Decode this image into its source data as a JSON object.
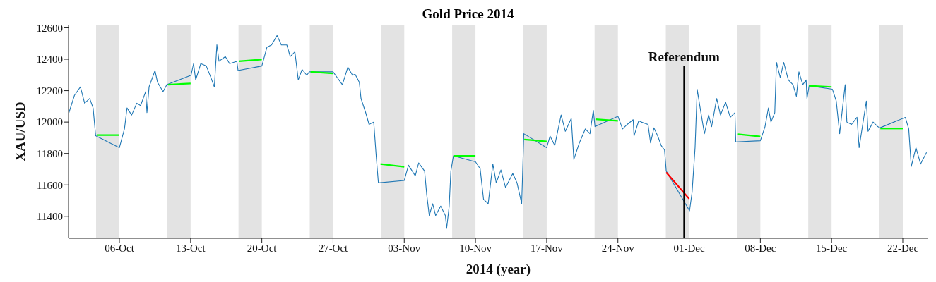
{
  "chart_data": {
    "type": "line",
    "title": "Gold Price 2014",
    "xlabel": "2014 (year)",
    "ylabel": "XAU/USD",
    "xlim": [
      "2014-10-01T00:00",
      "2014-12-24T12:00"
    ],
    "xticks": [
      {
        "value": "2014-10-06",
        "label": "06-Oct"
      },
      {
        "value": "2014-10-13",
        "label": "13-Oct"
      },
      {
        "value": "2014-10-20",
        "label": "20-Oct"
      },
      {
        "value": "2014-10-27",
        "label": "27-Oct"
      },
      {
        "value": "2014-11-03",
        "label": "03-Nov"
      },
      {
        "value": "2014-11-10",
        "label": "10-Nov"
      },
      {
        "value": "2014-11-17",
        "label": "17-Nov"
      },
      {
        "value": "2014-11-24",
        "label": "24-Nov"
      },
      {
        "value": "2014-12-01",
        "label": "01-Dec"
      },
      {
        "value": "2014-12-08",
        "label": "08-Dec"
      },
      {
        "value": "2014-12-15",
        "label": "15-Dec"
      },
      {
        "value": "2014-12-22",
        "label": "22-Dec"
      }
    ],
    "ylim": [
      11260,
      12620
    ],
    "yticks": [
      11400,
      11600,
      11800,
      12000,
      12200,
      12400,
      12600
    ],
    "series": [
      {
        "color": "#1f77b4",
        "x": [
          "2014-10-01T01:00",
          "2014-10-01T14:00",
          "2014-10-02T04:00",
          "2014-10-02T14:00",
          "2014-10-03T02:00",
          "2014-10-03T10:00",
          "2014-10-03T16:00",
          "2014-10-06T00:00",
          "2014-10-06T12:00",
          "2014-10-06T18:00",
          "2014-10-07T05:00",
          "2014-10-07T17:00",
          "2014-10-08T02:00",
          "2014-10-08T14:00",
          "2014-10-08T17:00",
          "2014-10-08T22:00",
          "2014-10-09T12:00",
          "2014-10-09T18:00",
          "2014-10-10T07:00",
          "2014-10-10T16:00",
          "2014-10-13T01:00",
          "2014-10-13T07:00",
          "2014-10-13T12:00",
          "2014-10-14T00:00",
          "2014-10-14T13:00",
          "2014-10-15T00:00",
          "2014-10-15T08:00",
          "2014-10-15T14:00",
          "2014-10-15T19:00",
          "2014-10-16T10:00",
          "2014-10-16T20:00",
          "2014-10-17T13:00",
          "2014-10-17T16:00",
          "2014-10-20T00:00",
          "2014-10-20T12:00",
          "2014-10-20T23:00",
          "2014-10-21T12:00",
          "2014-10-21T22:00",
          "2014-10-22T11:00",
          "2014-10-22T19:00",
          "2014-10-23T06:00",
          "2014-10-23T14:00",
          "2014-10-23T23:00",
          "2014-10-24T10:00",
          "2014-10-24T16:00",
          "2014-10-27T00:00",
          "2014-10-27T08:00",
          "2014-10-27T22:00",
          "2014-10-28T11:00",
          "2014-10-28T22:00",
          "2014-10-29T04:00",
          "2014-10-29T14:00",
          "2014-10-29T18:00",
          "2014-10-30T05:00",
          "2014-10-30T13:00",
          "2014-10-31T00:00",
          "2014-10-31T06:00",
          "2014-10-31T11:00",
          "2014-11-03T00:00",
          "2014-11-03T10:00",
          "2014-11-04T02:00",
          "2014-11-04T10:00",
          "2014-11-05T00:00",
          "2014-11-05T05:00",
          "2014-11-05T11:00",
          "2014-11-05T19:00",
          "2014-11-06T02:00",
          "2014-11-06T14:00",
          "2014-11-07T01:00",
          "2014-11-07T04:00",
          "2014-11-07T10:00",
          "2014-11-07T14:00",
          "2014-11-07T20:00",
          "2014-11-10T00:00",
          "2014-11-10T11:00",
          "2014-11-10T19:00",
          "2014-11-11T06:00",
          "2014-11-11T17:00",
          "2014-11-12T01:00",
          "2014-11-12T12:00",
          "2014-11-12T23:00",
          "2014-11-13T16:00",
          "2014-11-14T02:00",
          "2014-11-14T13:00",
          "2014-11-14T18:00",
          "2014-11-17T00:00",
          "2014-11-17T08:00",
          "2014-11-17T19:00",
          "2014-11-18T10:00",
          "2014-11-18T20:00",
          "2014-11-19T10:00",
          "2014-11-19T16:00",
          "2014-11-20T05:00",
          "2014-11-20T19:00",
          "2014-11-21T06:00",
          "2014-11-21T14:00",
          "2014-11-21T18:00",
          "2014-11-24T00:00",
          "2014-11-24T11:00",
          "2014-11-24T22:00",
          "2014-11-25T12:00",
          "2014-11-25T14:00",
          "2014-11-26T01:00",
          "2014-11-26T07:00",
          "2014-11-26T23:00",
          "2014-11-27T05:00",
          "2014-11-27T13:00",
          "2014-11-27T22:00",
          "2014-11-28T06:00",
          "2014-11-28T14:00",
          "2014-11-28T18:00",
          "2014-12-01T01:00",
          "2014-12-01T07:00",
          "2014-12-01T14:00",
          "2014-12-01T19:00",
          "2014-12-02T02:00",
          "2014-12-02T12:00",
          "2014-12-02T22:00",
          "2014-12-03T05:00",
          "2014-12-03T17:00",
          "2014-12-04T02:00",
          "2014-12-04T14:00",
          "2014-12-05T01:00",
          "2014-12-05T12:00",
          "2014-12-05T14:00",
          "2014-12-08T00:00",
          "2014-12-08T11:00",
          "2014-12-08T19:00",
          "2014-12-09T01:00",
          "2014-12-09T10:00",
          "2014-12-09T14:00",
          "2014-12-09T23:00",
          "2014-12-10T07:00",
          "2014-12-10T18:00",
          "2014-12-11T05:00",
          "2014-12-11T13:00",
          "2014-12-11T19:00",
          "2014-12-12T04:00",
          "2014-12-12T12:00",
          "2014-12-12T14:00",
          "2014-12-12T19:00",
          "2014-12-15T02:00",
          "2014-12-15T11:00",
          "2014-12-15T19:00",
          "2014-12-16T08:00",
          "2014-12-16T12:00",
          "2014-12-16T23:00",
          "2014-12-17T12:00",
          "2014-12-17T17:00",
          "2014-12-18T10:00",
          "2014-12-18T14:00",
          "2014-12-19T02:00",
          "2014-12-19T13:00",
          "2014-12-19T18:00",
          "2014-12-22T06:00",
          "2014-12-22T14:00",
          "2014-12-22T20:00",
          "2014-12-23T07:00",
          "2014-12-23T18:00",
          "2014-12-24T08:00"
        ],
        "values": [
          12060,
          12170,
          12224,
          12120,
          12150,
          12090,
          11913,
          11837,
          11957,
          12090,
          12045,
          12120,
          12105,
          12194,
          12060,
          12224,
          12328,
          12253,
          12194,
          12238,
          12298,
          12372,
          12268,
          12372,
          12357,
          12283,
          12224,
          12492,
          12387,
          12417,
          12372,
          12387,
          12328,
          12357,
          12476,
          12491,
          12551,
          12491,
          12491,
          12417,
          12447,
          12268,
          12335,
          12298,
          12320,
          12320,
          12290,
          12238,
          12350,
          12298,
          12305,
          12253,
          12150,
          12060,
          11985,
          12000,
          11777,
          11613,
          11628,
          11725,
          11658,
          11740,
          11688,
          11539,
          11405,
          11480,
          11405,
          11465,
          11405,
          11323,
          11465,
          11688,
          11785,
          11747,
          11703,
          11509,
          11480,
          11733,
          11613,
          11695,
          11583,
          11673,
          11613,
          11480,
          11926,
          11837,
          11911,
          11851,
          12045,
          11941,
          12023,
          11762,
          11867,
          11956,
          11926,
          12075,
          11971,
          12037,
          11956,
          11985,
          12015,
          11911,
          12008,
          12000,
          11985,
          11867,
          11963,
          11911,
          11851,
          11822,
          11688,
          11435,
          11554,
          11837,
          12209,
          12090,
          11926,
          12045,
          11971,
          12150,
          12045,
          12127,
          12030,
          12060,
          11874,
          11881,
          11971,
          12090,
          12000,
          12060,
          12380,
          12283,
          12380,
          12268,
          12238,
          12164,
          12320,
          12238,
          12268,
          12150,
          12231,
          12209,
          12134,
          11926,
          12238,
          12000,
          11985,
          12030,
          11837,
          12134,
          11941,
          12000,
          11971,
          11963,
          12030,
          11956,
          11717,
          11837,
          11733,
          11807
        ]
      },
      {
        "type": "line",
        "color": "#00ff00",
        "x": [
          "2014-10-03T19:00",
          "2014-10-06T00:00"
        ],
        "values": [
          11917,
          11917
        ]
      },
      {
        "type": "line",
        "color": "#00ff00",
        "x": [
          "2014-10-10T19:00",
          "2014-10-13T00:00"
        ],
        "values": [
          12238,
          12246
        ]
      },
      {
        "type": "line",
        "color": "#00ff00",
        "x": [
          "2014-10-17T18:00",
          "2014-10-20T00:00"
        ],
        "values": [
          12387,
          12398
        ]
      },
      {
        "type": "line",
        "color": "#00ff00",
        "x": [
          "2014-10-24T19:00",
          "2014-10-27T00:00"
        ],
        "values": [
          12320,
          12310
        ]
      },
      {
        "type": "line",
        "color": "#00ff00",
        "x": [
          "2014-10-31T16:00",
          "2014-11-03T00:00"
        ],
        "values": [
          11733,
          11715
        ]
      },
      {
        "type": "line",
        "color": "#00ff00",
        "x": [
          "2014-11-07T20:00",
          "2014-11-10T00:00"
        ],
        "values": [
          11785,
          11785
        ]
      },
      {
        "type": "line",
        "color": "#00ff00",
        "x": [
          "2014-11-14T19:00",
          "2014-11-17T00:00"
        ],
        "values": [
          11889,
          11877
        ]
      },
      {
        "type": "line",
        "color": "#00ff00",
        "x": [
          "2014-11-21T19:00",
          "2014-11-24T00:00"
        ],
        "values": [
          12018,
          12008
        ]
      },
      {
        "type": "line",
        "color": "#ff0000",
        "x": [
          "2014-11-28T18:00",
          "2014-12-01T00:00"
        ],
        "values": [
          11680,
          11512
        ]
      },
      {
        "type": "line",
        "color": "#00ff00",
        "x": [
          "2014-12-05T19:00",
          "2014-12-08T00:00"
        ],
        "values": [
          11923,
          11908
        ]
      },
      {
        "type": "line",
        "color": "#00ff00",
        "x": [
          "2014-12-12T19:00",
          "2014-12-15T00:00"
        ],
        "values": [
          12231,
          12224
        ]
      },
      {
        "type": "line",
        "color": "#00ff00",
        "x": [
          "2014-12-19T19:00",
          "2014-12-22T00:00"
        ],
        "values": [
          11959,
          11959
        ]
      }
    ],
    "bands": [
      {
        "axis": "x",
        "from": "2014-10-03T17:00",
        "to": "2014-10-06T00:00",
        "color": "#e3e3e3"
      },
      {
        "axis": "x",
        "from": "2014-10-10T17:00",
        "to": "2014-10-13T00:00",
        "color": "#e3e3e3"
      },
      {
        "axis": "x",
        "from": "2014-10-17T17:00",
        "to": "2014-10-20T00:00",
        "color": "#e3e3e3"
      },
      {
        "axis": "x",
        "from": "2014-10-24T17:00",
        "to": "2014-10-27T00:00",
        "color": "#e3e3e3"
      },
      {
        "axis": "x",
        "from": "2014-10-31T17:00",
        "to": "2014-11-03T00:00",
        "color": "#e3e3e3"
      },
      {
        "axis": "x",
        "from": "2014-11-07T17:00",
        "to": "2014-11-10T00:00",
        "color": "#e3e3e3"
      },
      {
        "axis": "x",
        "from": "2014-11-14T17:00",
        "to": "2014-11-17T00:00",
        "color": "#e3e3e3"
      },
      {
        "axis": "x",
        "from": "2014-11-21T17:00",
        "to": "2014-11-24T00:00",
        "color": "#e3e3e3"
      },
      {
        "axis": "x",
        "from": "2014-11-28T17:00",
        "to": "2014-12-01T00:00",
        "color": "#e3e3e3"
      },
      {
        "axis": "x",
        "from": "2014-12-05T17:00",
        "to": "2014-12-08T00:00",
        "color": "#e3e3e3"
      },
      {
        "axis": "x",
        "from": "2014-12-12T17:00",
        "to": "2014-12-15T00:00",
        "color": "#e3e3e3"
      },
      {
        "axis": "x",
        "from": "2014-12-19T17:00",
        "to": "2014-12-22T00:00",
        "color": "#e3e3e3"
      }
    ],
    "ref_lines": [
      {
        "axis": "x",
        "value": "2014-11-30T12:00",
        "label": "Referendum",
        "color": "#000000"
      }
    ]
  }
}
